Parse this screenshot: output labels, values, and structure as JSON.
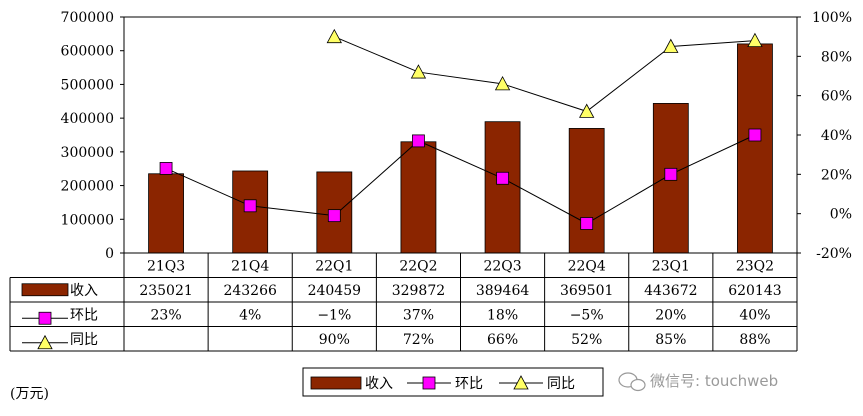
{
  "chart_data": {
    "type": "bar",
    "categories": [
      "21Q3",
      "21Q4",
      "22Q1",
      "22Q2",
      "22Q3",
      "22Q4",
      "23Q1",
      "23Q2"
    ],
    "series": [
      {
        "name": "收入",
        "kind": "bar",
        "axis": "left",
        "values": [
          235021,
          243266,
          240459,
          329872,
          389464,
          369501,
          443672,
          620143
        ],
        "color": "#8B2500"
      },
      {
        "name": "环比",
        "kind": "line",
        "axis": "right",
        "marker": "square",
        "values": [
          23,
          4,
          -1,
          37,
          18,
          -5,
          20,
          40
        ],
        "color": "#FF00FF"
      },
      {
        "name": "同比",
        "kind": "line",
        "axis": "right",
        "marker": "triangle",
        "values": [
          null,
          null,
          90,
          72,
          66,
          52,
          85,
          88
        ],
        "color": "#FFFF66"
      }
    ],
    "table_rows": [
      {
        "label": "收入",
        "cells": [
          "235021",
          "243266",
          "240459",
          "329872",
          "389464",
          "369501",
          "443672",
          "620143"
        ]
      },
      {
        "label": "环比",
        "cells": [
          "23%",
          "4%",
          "−1%",
          "37%",
          "18%",
          "−5%",
          "20%",
          "40%"
        ]
      },
      {
        "label": "同比",
        "cells": [
          "",
          "",
          "90%",
          "72%",
          "66%",
          "52%",
          "85%",
          "88%"
        ]
      }
    ],
    "y_left": {
      "min": 0,
      "max": 700000,
      "ticks": [
        "0",
        "100000",
        "200000",
        "300000",
        "400000",
        "500000",
        "600000",
        "700000"
      ]
    },
    "y_right": {
      "min": -20,
      "max": 100,
      "ticks": [
        "-20%",
        "0%",
        "20%",
        "40%",
        "60%",
        "80%",
        "100%"
      ]
    },
    "legend": [
      "收入",
      "环比",
      "同比"
    ],
    "legend_position": "bottom",
    "unit_label": "(万元)",
    "grid": false
  },
  "watermark": "微信号: touchweb"
}
